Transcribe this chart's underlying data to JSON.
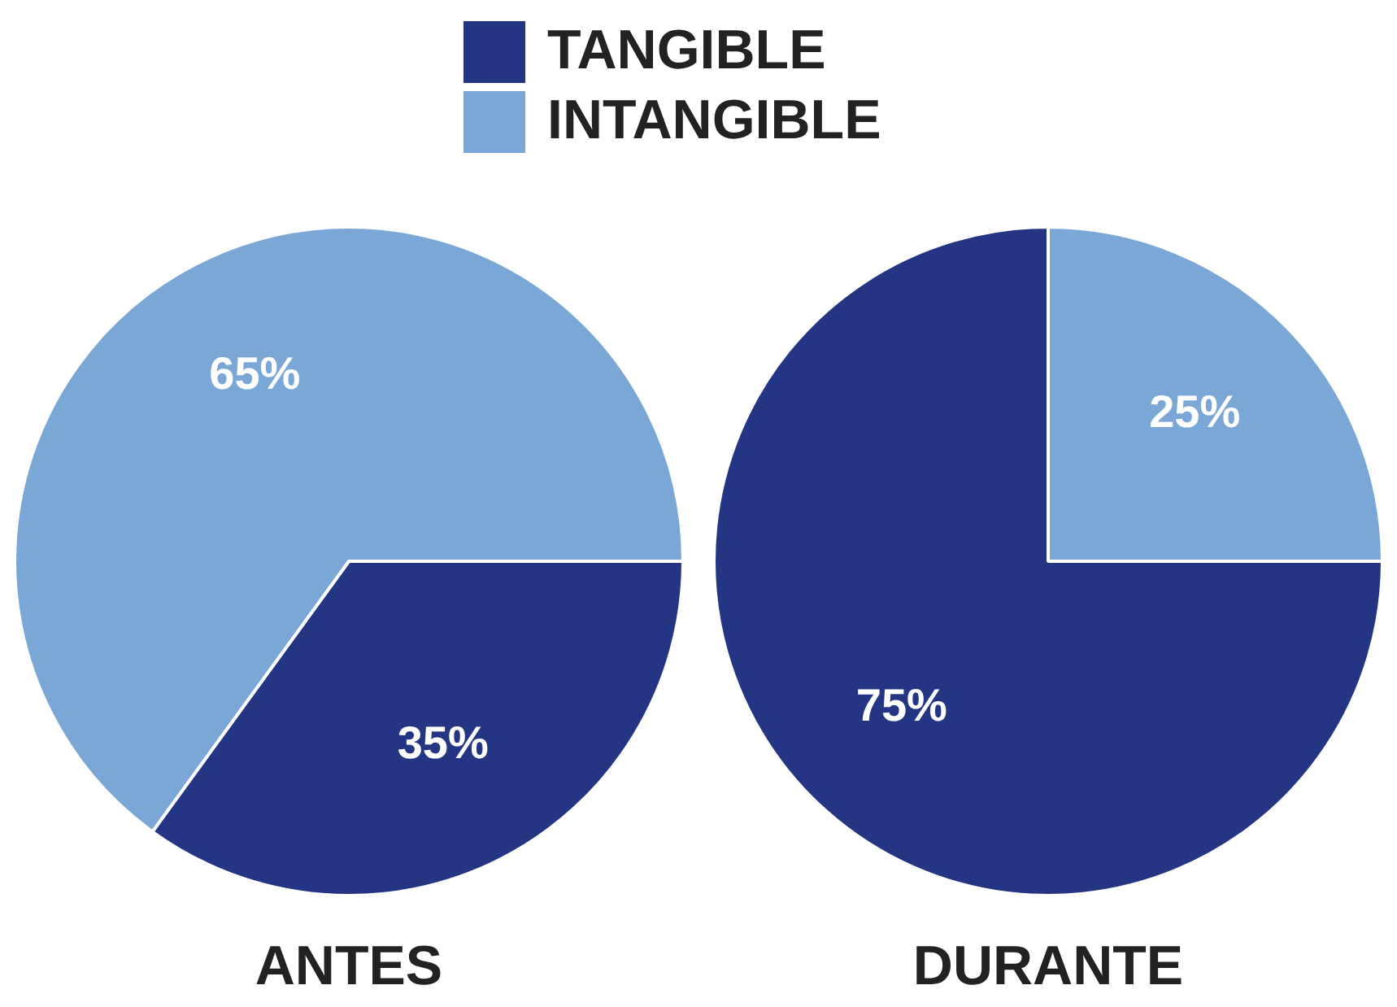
{
  "chart_data": [
    {
      "type": "pie",
      "title": "ANTES",
      "categories": [
        "TANGIBLE",
        "INTANGIBLE"
      ],
      "values": [
        35,
        65
      ],
      "colors": [
        "#233583",
        "#7ba7d6"
      ],
      "value_labels": [
        "35%",
        "65%"
      ],
      "legend": "top"
    },
    {
      "type": "pie",
      "title": "DURANTE",
      "categories": [
        null,
        null
      ],
      "values": [
        75,
        25
      ],
      "colors": [
        "#233583",
        "#7ba7d6"
      ],
      "value_labels": [
        "75%",
        "25%"
      ]
    }
  ]
}
